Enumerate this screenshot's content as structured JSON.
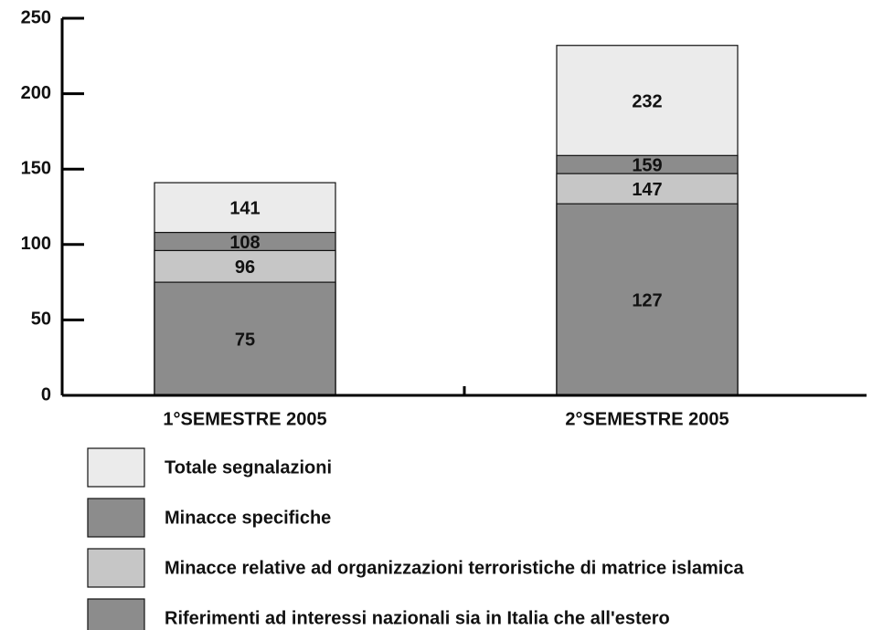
{
  "chart_data": {
    "type": "bar",
    "categories": [
      "1°SEMESTRE 2005",
      "2°SEMESTRE 2005"
    ],
    "series": [
      {
        "name": "Totale segnalazioni",
        "color": "#ebebeb",
        "values": [
          141,
          232
        ]
      },
      {
        "name": "Minacce specifiche",
        "color": "#8c8c8c",
        "values": [
          108,
          159
        ]
      },
      {
        "name": "Minacce relative ad organizzazioni terroristiche di matrice islamica",
        "color": "#c6c6c6",
        "values": [
          96,
          147
        ]
      },
      {
        "name": "Riferimenti ad interessi nazionali sia in Italia che all'estero",
        "color": "#8c8c8c",
        "values": [
          75,
          127
        ]
      }
    ],
    "ylim": [
      0,
      250
    ],
    "yticks": [
      0,
      50,
      100,
      150,
      200,
      250
    ]
  }
}
